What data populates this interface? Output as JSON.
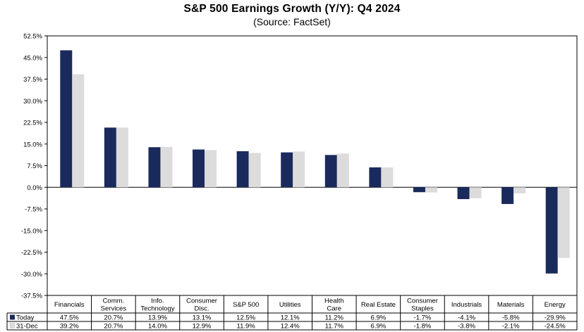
{
  "chart_data": {
    "type": "bar",
    "title": "S&P 500 Earnings Growth (Y/Y): Q4 2024",
    "subtitle": "(Source: FactSet)",
    "xlabel": "",
    "ylabel": "",
    "ylim": [
      -37.5,
      52.5
    ],
    "yticks": [
      "52.5%",
      "45.0%",
      "37.5%",
      "30.0%",
      "22.5%",
      "15.0%",
      "7.5%",
      "0.0%",
      "-7.5%",
      "-15.0%",
      "-22.5%",
      "-30.0%",
      "-37.5%"
    ],
    "ytick_values": [
      52.5,
      45,
      37.5,
      30,
      22.5,
      15,
      7.5,
      0,
      -7.5,
      -15,
      -22.5,
      -30,
      -37.5
    ],
    "grid": false,
    "legend": "table-left",
    "categories": [
      [
        "Financials"
      ],
      [
        "Comm.",
        "Services"
      ],
      [
        "Info.",
        "Technology"
      ],
      [
        "Consumer",
        "Disc."
      ],
      [
        "S&P 500"
      ],
      [
        "Utilities"
      ],
      [
        "Health",
        "Care"
      ],
      [
        "Real Estate"
      ],
      [
        "Consumer",
        "Staples"
      ],
      [
        "Industrials"
      ],
      [
        "Materials"
      ],
      [
        "Energy"
      ]
    ],
    "series": [
      {
        "name": "Today",
        "color": "#1b2a5c",
        "values": [
          47.5,
          20.7,
          13.9,
          13.1,
          12.5,
          12.1,
          11.2,
          6.9,
          -1.7,
          -4.1,
          -5.8,
          -29.9
        ],
        "labels": [
          "47.5%",
          "20.7%",
          "13.9%",
          "13.1%",
          "12.5%",
          "12.1%",
          "11.2%",
          "6.9%",
          "-1.7%",
          "-4.1%",
          "-5.8%",
          "-29.9%"
        ]
      },
      {
        "name": "31-Dec",
        "color": "#dcdcdc",
        "values": [
          39.2,
          20.7,
          14.0,
          12.9,
          11.9,
          12.4,
          11.7,
          6.9,
          -1.8,
          -3.8,
          -2.1,
          -24.5
        ],
        "labels": [
          "39.2%",
          "20.7%",
          "14.0%",
          "12.9%",
          "11.9%",
          "12.4%",
          "11.7%",
          "6.9%",
          "-1.8%",
          "-3.8%",
          "-2.1%",
          "-24.5%"
        ]
      }
    ]
  }
}
